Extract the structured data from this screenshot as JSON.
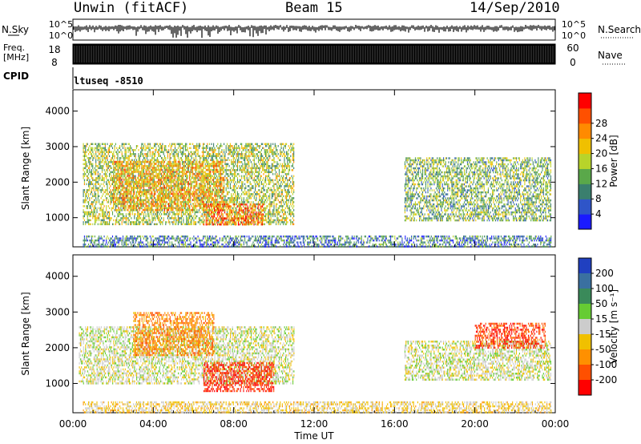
{
  "header": {
    "station": "Unwin (fitACF)",
    "beam": "Beam 15",
    "date": "14/Sep/2010"
  },
  "aux": {
    "nsky_label": "N.Sky",
    "nsearch_label": "N.Search",
    "freq_label_1": "Freq.",
    "freq_label_2": "[MHz]",
    "nave_label": "Nave",
    "cpid_label": "CPID",
    "cpid_value": "ltuseq -8510",
    "noise_ticks": [
      "10^5",
      "10^0"
    ],
    "freq_ticks": [
      "18",
      "8"
    ],
    "nave_ticks": [
      "60",
      "0"
    ]
  },
  "axes": {
    "x_ticks": [
      "00:00",
      "04:00",
      "08:00",
      "12:00",
      "16:00",
      "20:00",
      "00:00"
    ],
    "x_label": "Time UT",
    "y_label": "Slant Range [km]",
    "y_ticks": [
      "1000",
      "2000",
      "3000",
      "4000"
    ]
  },
  "colorbars": {
    "power": {
      "label": "Power [dB]",
      "ticks": [
        "4",
        "8",
        "12",
        "16",
        "20",
        "24",
        "28"
      ],
      "colors": [
        "#1a1aff",
        "#2f55c8",
        "#3a7f6e",
        "#5aa84a",
        "#b8d42a",
        "#f0c000",
        "#ff8a00",
        "#ff5000",
        "#ff0000"
      ]
    },
    "velocity": {
      "label": "Velocity [m s⁻¹]",
      "ticks": [
        "200",
        "100",
        "50",
        "15",
        "-15",
        "-50",
        "-100",
        "-200"
      ],
      "colors": [
        "#2040c0",
        "#3a70a0",
        "#3a8a5a",
        "#66cc33",
        "#cccccc",
        "#f0c000",
        "#ff9000",
        "#ff5000",
        "#ff0000"
      ]
    }
  },
  "chart_data": [
    {
      "type": "heatmap",
      "title": "Power",
      "xlabel": "Time UT",
      "ylabel": "Slant Range [km]",
      "xlim": [
        0,
        24
      ],
      "ylim": [
        180,
        4600
      ],
      "colorbar": "Power [dB]",
      "clim": [
        0,
        30
      ],
      "regions": [
        {
          "x": [
            0.5,
            11.0
          ],
          "y": [
            800,
            3100
          ],
          "value": 14
        },
        {
          "x": [
            2.0,
            7.5
          ],
          "y": [
            1200,
            2600
          ],
          "value": 20
        },
        {
          "x": [
            6.5,
            9.5
          ],
          "y": [
            800,
            1400
          ],
          "value": 24
        },
        {
          "x": [
            16.5,
            23.8
          ],
          "y": [
            900,
            2700
          ],
          "value": 12
        },
        {
          "x": [
            0.5,
            23.8
          ],
          "y": [
            200,
            500
          ],
          "value": 8
        }
      ]
    },
    {
      "type": "heatmap",
      "title": "Velocity",
      "xlabel": "Time UT",
      "ylabel": "Slant Range [km]",
      "xlim": [
        0,
        24
      ],
      "ylim": [
        180,
        4600
      ],
      "colorbar": "Velocity [m s⁻¹]",
      "clim": [
        -250,
        250
      ],
      "regions": [
        {
          "x": [
            0.3,
            11.0
          ],
          "y": [
            1000,
            2600
          ],
          "value": 0
        },
        {
          "x": [
            3.0,
            7.0
          ],
          "y": [
            1800,
            3000
          ],
          "value": -120
        },
        {
          "x": [
            6.5,
            10.0
          ],
          "y": [
            800,
            1600
          ],
          "value": -200
        },
        {
          "x": [
            16.5,
            23.8
          ],
          "y": [
            1100,
            2200
          ],
          "value": 0
        },
        {
          "x": [
            20.0,
            23.5
          ],
          "y": [
            2000,
            2700
          ],
          "value": -180
        },
        {
          "x": [
            0.5,
            23.8
          ],
          "y": [
            200,
            500
          ],
          "value": -40
        }
      ]
    }
  ]
}
